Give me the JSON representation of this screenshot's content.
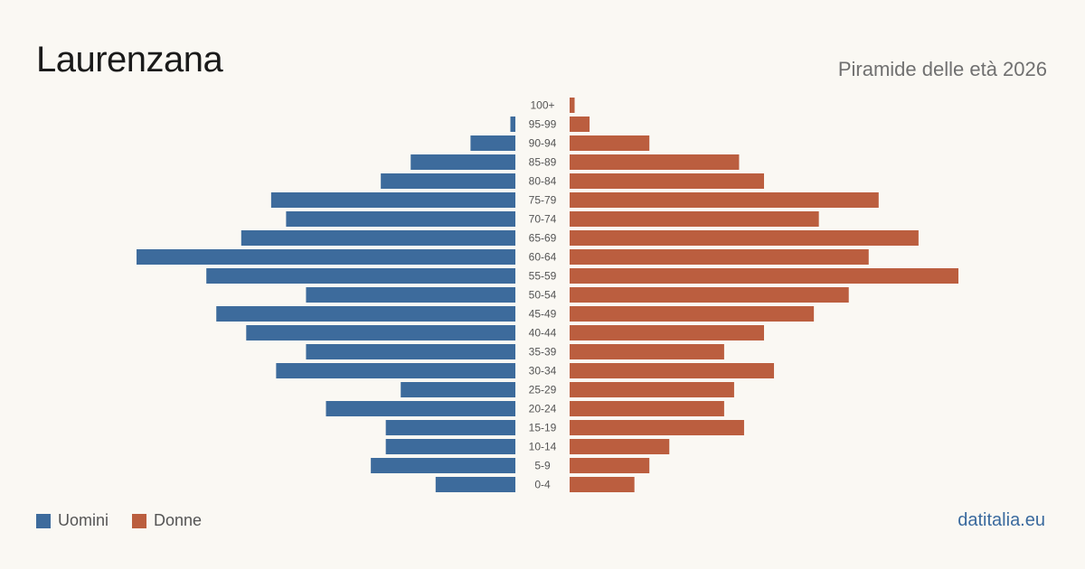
{
  "header": {
    "title": "Laurenzana",
    "subtitle": "Piramide delle età 2026"
  },
  "legend": {
    "men_label": "Uomini",
    "women_label": "Donne"
  },
  "footer": {
    "brand": "datitalia.eu"
  },
  "colors": {
    "men": "#3d6b9c",
    "women": "#bb5e3f",
    "background": "#faf8f3"
  },
  "chart_data": {
    "type": "bar",
    "orientation": "horizontal-pyramid",
    "categories": [
      "100+",
      "95-99",
      "90-94",
      "85-89",
      "80-84",
      "75-79",
      "70-74",
      "65-69",
      "60-64",
      "55-59",
      "50-54",
      "45-49",
      "40-44",
      "35-39",
      "30-34",
      "25-29",
      "20-24",
      "15-19",
      "10-14",
      "5-9",
      "0-4"
    ],
    "series": [
      {
        "name": "Uomini",
        "values": [
          0,
          1,
          9,
          21,
          27,
          49,
          46,
          55,
          76,
          62,
          42,
          60,
          54,
          42,
          48,
          23,
          38,
          26,
          26,
          29,
          16
        ]
      },
      {
        "name": "Donne",
        "values": [
          1,
          4,
          16,
          34,
          39,
          62,
          50,
          70,
          60,
          78,
          56,
          49,
          39,
          31,
          41,
          33,
          31,
          35,
          20,
          16,
          13
        ]
      }
    ],
    "xlim": [
      0,
      78
    ]
  }
}
